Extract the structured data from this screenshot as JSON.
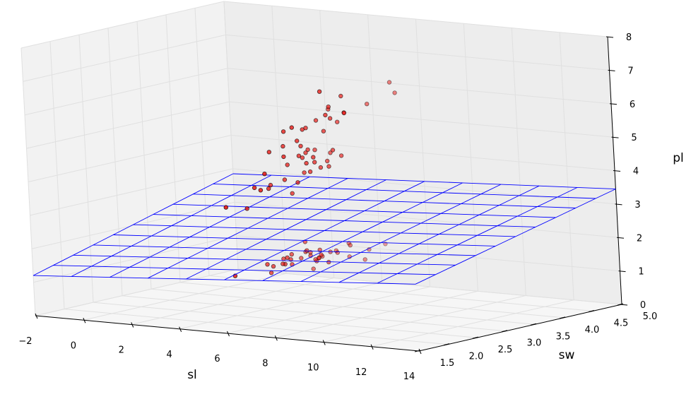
{
  "chart_data": {
    "type": "scatter",
    "projection": "3d",
    "xlabel": "sl",
    "ylabel": "sw",
    "zlabel": "pl",
    "xlim": [
      -2,
      14
    ],
    "ylim": [
      1.5,
      5.0
    ],
    "zlim": [
      0,
      8
    ],
    "x_ticks": [
      "−2",
      "0",
      "2",
      "4",
      "6",
      "8",
      "10",
      "12",
      "14"
    ],
    "y_ticks": [
      "1.5",
      "2.0",
      "2.5",
      "3.0",
      "3.5",
      "4.0",
      "4.5",
      "5.0"
    ],
    "z_ticks": [
      "0",
      "1",
      "2",
      "3",
      "4",
      "5",
      "6",
      "7",
      "8"
    ],
    "grid": true,
    "colors": {
      "points": "#e8130f",
      "point_edge": "#000000",
      "surface": "#0000ff",
      "pane": "#f2f2f2",
      "grid": "#e0e0e0"
    },
    "series": [
      {
        "kind": "scatter",
        "points": [
          [
            5.1,
            3.5,
            1.4
          ],
          [
            4.9,
            3.0,
            1.4
          ],
          [
            4.7,
            3.2,
            1.3
          ],
          [
            4.6,
            3.1,
            1.5
          ],
          [
            5.0,
            3.6,
            1.4
          ],
          [
            5.4,
            3.9,
            1.7
          ],
          [
            4.6,
            3.4,
            1.4
          ],
          [
            5.0,
            3.4,
            1.5
          ],
          [
            4.4,
            2.9,
            1.4
          ],
          [
            4.9,
            3.1,
            1.5
          ],
          [
            5.4,
            3.7,
            1.5
          ],
          [
            4.8,
            3.4,
            1.6
          ],
          [
            4.8,
            3.0,
            1.4
          ],
          [
            4.3,
            3.0,
            1.1
          ],
          [
            5.8,
            4.0,
            1.2
          ],
          [
            5.7,
            4.4,
            1.5
          ],
          [
            5.4,
            3.9,
            1.3
          ],
          [
            5.1,
            3.5,
            1.4
          ],
          [
            5.7,
            3.8,
            1.7
          ],
          [
            5.1,
            3.8,
            1.5
          ],
          [
            5.4,
            3.4,
            1.7
          ],
          [
            5.1,
            3.7,
            1.5
          ],
          [
            4.6,
            3.6,
            1.0
          ],
          [
            5.1,
            3.3,
            1.7
          ],
          [
            4.8,
            3.4,
            1.9
          ],
          [
            5.0,
            3.0,
            1.6
          ],
          [
            5.0,
            3.4,
            1.6
          ],
          [
            5.2,
            3.5,
            1.5
          ],
          [
            5.2,
            3.4,
            1.4
          ],
          [
            4.7,
            3.2,
            1.6
          ],
          [
            5.5,
            4.2,
            1.4
          ],
          [
            5.5,
            3.5,
            1.3
          ],
          [
            4.4,
            3.0,
            1.3
          ],
          [
            5.0,
            3.5,
            1.3
          ],
          [
            4.5,
            2.3,
            1.3
          ],
          [
            7.0,
            3.2,
            4.7
          ],
          [
            6.4,
            3.2,
            4.5
          ],
          [
            6.9,
            3.1,
            4.9
          ],
          [
            5.5,
            2.3,
            4.0
          ],
          [
            6.5,
            2.8,
            4.6
          ],
          [
            5.7,
            2.8,
            4.5
          ],
          [
            6.3,
            3.3,
            4.7
          ],
          [
            4.9,
            2.4,
            3.3
          ],
          [
            6.6,
            2.9,
            4.6
          ],
          [
            5.2,
            2.7,
            3.9
          ],
          [
            5.0,
            2.0,
            3.5
          ],
          [
            5.9,
            3.0,
            4.2
          ],
          [
            6.0,
            2.2,
            4.0
          ],
          [
            6.1,
            2.9,
            4.7
          ],
          [
            5.6,
            2.9,
            3.6
          ],
          [
            6.7,
            3.1,
            4.4
          ],
          [
            5.8,
            2.7,
            4.1
          ],
          [
            6.2,
            2.2,
            4.5
          ],
          [
            5.6,
            2.5,
            3.9
          ],
          [
            5.9,
            3.2,
            4.8
          ],
          [
            6.1,
            2.8,
            4.0
          ],
          [
            6.3,
            2.5,
            4.9
          ],
          [
            6.4,
            2.9,
            4.3
          ],
          [
            6.6,
            3.0,
            4.4
          ],
          [
            6.8,
            2.8,
            4.8
          ],
          [
            6.3,
            3.3,
            6.0
          ],
          [
            5.8,
            2.7,
            5.1
          ],
          [
            7.1,
            3.0,
            5.9
          ],
          [
            6.3,
            2.9,
            5.6
          ],
          [
            6.5,
            3.0,
            5.8
          ],
          [
            7.6,
            3.0,
            6.6
          ],
          [
            7.3,
            2.9,
            6.3
          ],
          [
            6.7,
            2.5,
            5.8
          ],
          [
            7.2,
            3.6,
            6.1
          ],
          [
            6.4,
            2.7,
            5.3
          ],
          [
            6.8,
            3.0,
            5.5
          ],
          [
            5.7,
            2.5,
            5.0
          ],
          [
            7.7,
            3.8,
            6.7
          ],
          [
            7.7,
            2.6,
            6.9
          ],
          [
            6.9,
            3.2,
            5.7
          ],
          [
            7.2,
            3.2,
            6.0
          ],
          [
            6.2,
            2.8,
            4.8
          ],
          [
            6.1,
            3.0,
            4.9
          ],
          [
            6.4,
            2.8,
            5.6
          ],
          [
            7.4,
            2.8,
            6.1
          ],
          [
            7.9,
            3.8,
            6.4
          ],
          [
            6.3,
            2.8,
            5.1
          ],
          [
            6.1,
            2.6,
            5.6
          ],
          [
            7.7,
            3.0,
            6.1
          ],
          [
            6.0,
            3.0,
            4.8
          ]
        ]
      },
      {
        "kind": "wireframe",
        "x_range": [
          -2,
          14
        ],
        "y_range": [
          1.5,
          5.0
        ],
        "divisions": 10,
        "z_corners": [
          1.2,
          2.0,
          2.85,
          3.45
        ]
      }
    ]
  }
}
